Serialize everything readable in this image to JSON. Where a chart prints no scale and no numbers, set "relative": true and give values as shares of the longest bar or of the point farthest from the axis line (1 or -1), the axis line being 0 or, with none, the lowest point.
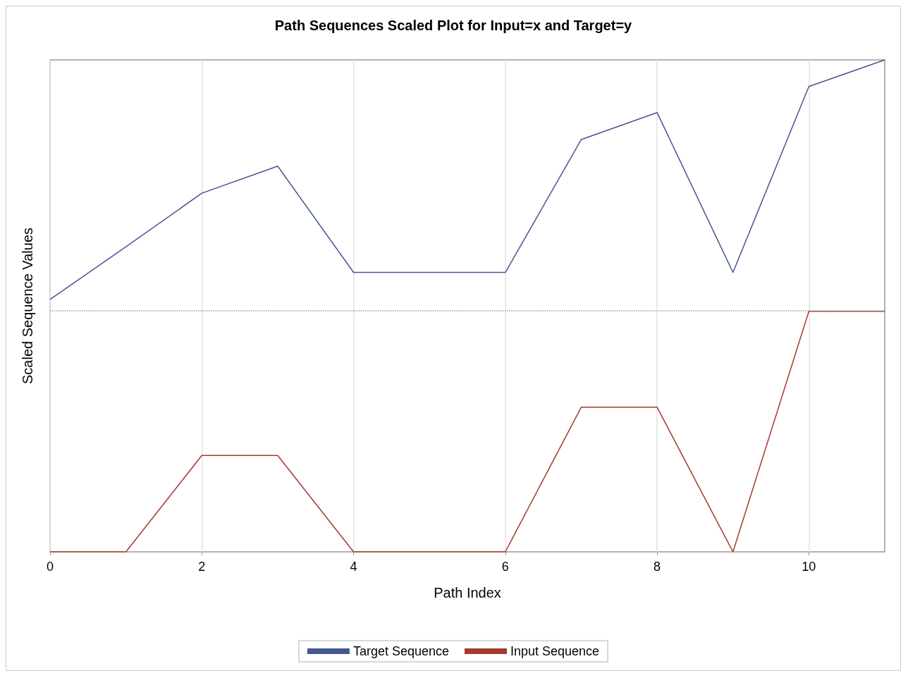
{
  "chart_data": {
    "type": "line",
    "title": "Path Sequences Scaled Plot for Input=x and Target=y",
    "xlabel": "Path Index",
    "ylabel": "Scaled Sequence Values",
    "relative": true,
    "x": [
      0,
      1,
      2,
      3,
      4,
      5,
      6,
      7,
      8,
      9,
      10,
      11
    ],
    "series": [
      {
        "name": "Target Sequence",
        "color": "#445694",
        "values": [
          0.513,
          0.62,
          0.729,
          0.784,
          0.568,
          0.568,
          0.568,
          0.838,
          0.893,
          0.568,
          0.946,
          1
        ]
      },
      {
        "name": "Input Sequence",
        "color": "#a23a2e",
        "values": [
          0,
          0,
          0.196,
          0.196,
          0,
          0,
          0,
          0.294,
          0.294,
          0,
          0.489,
          0.489
        ]
      }
    ],
    "xlim": [
      0,
      11
    ],
    "xticks": [
      0,
      2,
      4,
      6,
      8,
      10
    ],
    "grid": "x",
    "legend": "bottom",
    "line_style": "solid",
    "marker": "none",
    "ref_lines": [
      {
        "axis": "y",
        "value": 0.489,
        "color": "#a0a0a0",
        "line_style": "dotted"
      }
    ]
  }
}
